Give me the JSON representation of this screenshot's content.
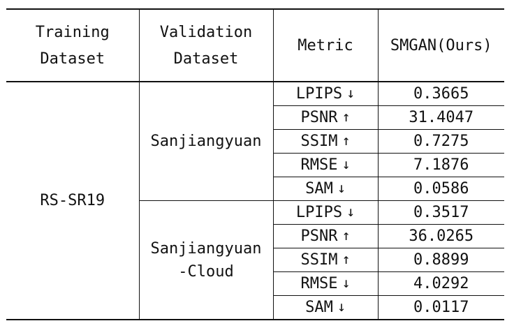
{
  "header": {
    "training_line1": "Training",
    "training_line2": "Dataset",
    "validation_line1": "Validation",
    "validation_line2": "Dataset",
    "metric": "Metric",
    "method": "SMGAN(Ours)"
  },
  "training_dataset": "RS-SR19",
  "groups": [
    {
      "validation_line1": "Sanjiangyuan",
      "validation_line2": "",
      "rows": [
        {
          "metric": "LPIPS",
          "arrow": "↓",
          "value": "0.3665",
          "bold": false
        },
        {
          "metric": "PSNR",
          "arrow": "↑",
          "value": "31.4047",
          "bold": false
        },
        {
          "metric": "SSIM",
          "arrow": "↑",
          "value": "0.7275",
          "bold": false
        },
        {
          "metric": "RMSE",
          "arrow": "↓",
          "value": "7.1876",
          "bold": false
        },
        {
          "metric": "SAM",
          "arrow": "↓",
          "value": "0.0586",
          "bold": false
        }
      ]
    },
    {
      "validation_line1": "Sanjiangyuan",
      "validation_line2": "-Cloud",
      "rows": [
        {
          "metric": "LPIPS",
          "arrow": "↓",
          "value": "0.3517",
          "bold": true
        },
        {
          "metric": "PSNR",
          "arrow": "↑",
          "value": "36.0265",
          "bold": true
        },
        {
          "metric": "SSIM",
          "arrow": "↑",
          "value": "0.8899",
          "bold": true
        },
        {
          "metric": "RMSE",
          "arrow": "↓",
          "value": "4.0292",
          "bold": true
        },
        {
          "metric": "SAM",
          "arrow": "↓",
          "value": "0.0117",
          "bold": true
        }
      ]
    }
  ]
}
